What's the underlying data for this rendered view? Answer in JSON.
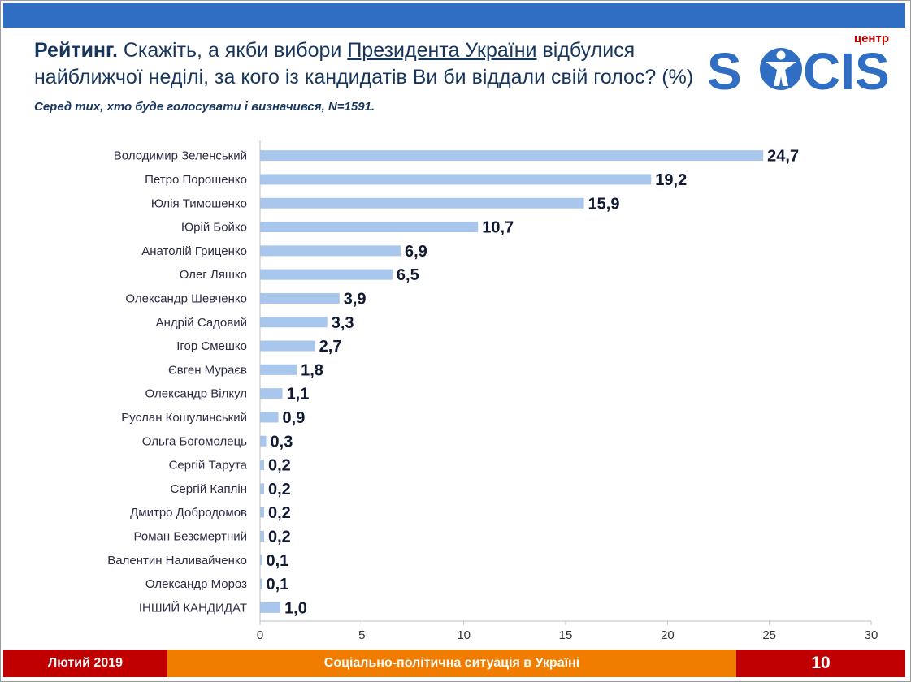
{
  "header": {
    "title_bold": "Рейтинг.",
    "title_part1": " Скажіть, а якби вибори ",
    "title_underlined": "Президента України",
    "title_part2": " відбулися найближчої неділі, за кого із кандидатів Ви би віддали свій голос? (%)",
    "note": "Серед тих, хто буде голосувати і визначився, N=1591."
  },
  "logo": {
    "top_text": "центр",
    "main_text_left": "S",
    "main_text_right": "CIS",
    "color": "#2f6ec2",
    "accent": "#c00000"
  },
  "colors": {
    "bar": "#a9c6ec",
    "top_bar": "#2f6ec2",
    "footer_red": "#c00000",
    "footer_orange": "#f07c00"
  },
  "chart_data": {
    "type": "bar",
    "orientation": "horizontal",
    "categories": [
      "Володимир Зеленський",
      "Петро Порошенко",
      "Юлія Тимошенко",
      "Юрій Бойко",
      "Анатолій Гриценко",
      "Олег Ляшко",
      "Олександр Шевченко",
      "Андрій Садовий",
      "Ігор Смешко",
      "Євген Мураєв",
      "Олександр Вілкул",
      "Руслан Кошулинський",
      "Ольга Богомолець",
      "Сергій Тарута",
      "Сергій Каплін",
      "Дмитро Добродомов",
      "Роман Безсмертний",
      "Валентин Наливайченко",
      "Олександр Мороз",
      "ІНШИЙ КАНДИДАТ"
    ],
    "values": [
      24.7,
      19.2,
      15.9,
      10.7,
      6.9,
      6.5,
      3.9,
      3.3,
      2.7,
      1.8,
      1.1,
      0.9,
      0.3,
      0.2,
      0.2,
      0.2,
      0.2,
      0.1,
      0.1,
      1.0
    ],
    "value_labels": [
      "24,7",
      "19,2",
      "15,9",
      "10,7",
      "6,9",
      "6,5",
      "3,9",
      "3,3",
      "2,7",
      "1,8",
      "1,1",
      "0,9",
      "0,3",
      "0,2",
      "0,2",
      "0,2",
      "0,2",
      "0,1",
      "0,1",
      "1,0"
    ],
    "xlim": [
      0,
      30
    ],
    "xticks": [
      0,
      5,
      10,
      15,
      20,
      25,
      30
    ],
    "grid": false
  },
  "footer": {
    "left": "Лютий 2019",
    "middle": "Соціально-політична ситуація в Україні",
    "page": "10"
  }
}
